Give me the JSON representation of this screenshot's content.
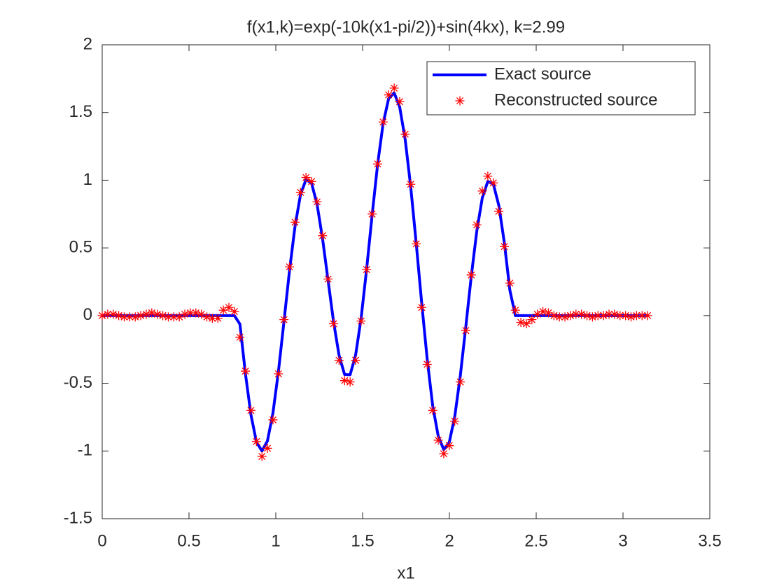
{
  "chart_data": {
    "type": "line",
    "title": "f(x1,k)=exp(-10k(x1-pi/2))+sin(4kx),    k=2.99",
    "xlabel": "x1",
    "x": [
      0,
      0.0317,
      0.0635,
      0.0952,
      0.1269,
      0.1587,
      0.1904,
      0.2221,
      0.2539,
      0.2856,
      0.3173,
      0.3491,
      0.3808,
      0.4125,
      0.4443,
      0.476,
      0.5077,
      0.5395,
      0.5712,
      0.6029,
      0.6347,
      0.6664,
      0.6981,
      0.7299,
      0.7616,
      0.7933,
      0.8251,
      0.8568,
      0.8885,
      0.9203,
      0.952,
      0.9837,
      1.0155,
      1.0472,
      1.0789,
      1.1107,
      1.1424,
      1.1741,
      1.2059,
      1.2376,
      1.2693,
      1.3011,
      1.3328,
      1.3645,
      1.3963,
      1.428,
      1.4597,
      1.4915,
      1.5232,
      1.5549,
      1.5867,
      1.6184,
      1.6501,
      1.6819,
      1.7136,
      1.7453,
      1.7771,
      1.8088,
      1.8405,
      1.8723,
      1.904,
      1.9357,
      1.9675,
      1.9992,
      2.0309,
      2.0627,
      2.0944,
      2.1261,
      2.1579,
      2.1896,
      2.2213,
      2.2531,
      2.2848,
      2.3165,
      2.3483,
      2.38,
      2.4117,
      2.4435,
      2.4752,
      2.5069,
      2.5387,
      2.5704,
      2.6021,
      2.6339,
      2.6656,
      2.6973,
      2.7291,
      2.7608,
      2.7925,
      2.8243,
      2.856,
      2.8877,
      2.9195,
      2.9512,
      2.9829,
      3.0147,
      3.0464,
      3.0781,
      3.1099,
      3.1416
    ],
    "series": [
      {
        "name": "Exact source",
        "color": "#0000ff",
        "values": [
          0,
          0,
          0,
          0,
          0,
          0,
          0,
          0,
          0,
          0,
          0,
          0,
          0,
          0,
          0,
          0,
          0,
          0,
          0,
          0,
          0,
          0,
          0,
          0,
          0,
          -0.063,
          -0.429,
          -0.733,
          -0.933,
          -1.0,
          -0.925,
          -0.718,
          -0.409,
          -0.042,
          0.332,
          0.659,
          0.894,
          1.005,
          0.978,
          0.823,
          0.568,
          0.26,
          -0.046,
          -0.294,
          -0.435,
          -0.437,
          -0.292,
          -0.019,
          0.344,
          0.743,
          1.119,
          1.42,
          1.603,
          1.645,
          1.541,
          1.301,
          0.952,
          0.535,
          0.092,
          -0.324,
          -0.668,
          -0.89,
          -0.99,
          -0.936,
          -0.745,
          -0.446,
          -0.083,
          0.292,
          0.625,
          0.87,
          0.991,
          0.971,
          0.813,
          0.538,
          0.188,
          0,
          0,
          0,
          0,
          0,
          0,
          0,
          0,
          0,
          0,
          0,
          0,
          0,
          0,
          0,
          0,
          0,
          0,
          0,
          0,
          0,
          0,
          0,
          0,
          0
        ]
      },
      {
        "name": "Reconstructed source",
        "color": "#ff0000",
        "marker": "*",
        "values": [
          0,
          0.01,
          0.01,
          0,
          -0.01,
          -0.01,
          -0.01,
          0,
          0.01,
          0.02,
          0.01,
          0,
          -0.01,
          -0.01,
          -0.01,
          0.01,
          0.02,
          0.02,
          0.01,
          -0.01,
          -0.02,
          -0.02,
          0.04,
          0.06,
          0.03,
          -0.16,
          -0.41,
          -0.7,
          -0.93,
          -1.04,
          -0.98,
          -0.77,
          -0.43,
          -0.03,
          0.36,
          0.69,
          0.91,
          1.02,
          0.99,
          0.84,
          0.59,
          0.27,
          -0.06,
          -0.33,
          -0.48,
          -0.49,
          -0.33,
          -0.04,
          0.34,
          0.75,
          1.12,
          1.43,
          1.63,
          1.68,
          1.58,
          1.34,
          0.97,
          0.53,
          0.06,
          -0.36,
          -0.7,
          -0.92,
          -1.02,
          -0.96,
          -0.78,
          -0.49,
          -0.11,
          0.3,
          0.67,
          0.92,
          1.03,
          0.98,
          0.77,
          0.51,
          0.24,
          0.04,
          -0.05,
          -0.06,
          -0.03,
          0.01,
          0.03,
          0.02,
          0,
          -0.01,
          -0.01,
          0,
          0.01,
          0.01,
          0,
          -0.01,
          0,
          0,
          0.01,
          0.01,
          0,
          0,
          -0.01,
          0,
          0,
          0
        ]
      }
    ],
    "xlim": [
      0,
      3.5
    ],
    "xticks": [
      0,
      0.5,
      1,
      1.5,
      2,
      2.5,
      3,
      3.5
    ],
    "ylim": [
      -1.5,
      2
    ],
    "yticks": [
      -1.5,
      -1,
      -0.5,
      0,
      0.5,
      1,
      1.5,
      2
    ],
    "grid": false,
    "legend": "northeast"
  }
}
